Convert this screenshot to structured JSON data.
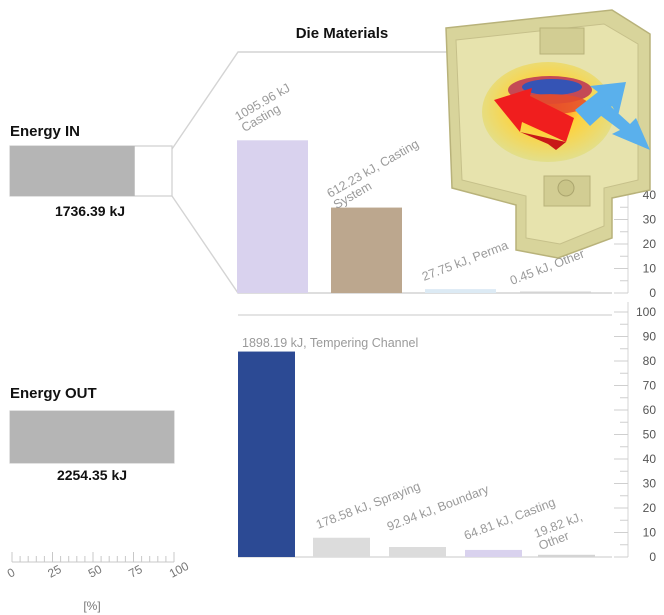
{
  "chart_data": {
    "type": "bar",
    "title": "Die Materials",
    "unit_label": "[%]",
    "colors": {
      "casting": "#d9d2ee",
      "casting_system": "#bca78e",
      "permanent": "#dceaf4",
      "other": "#d4d4d4",
      "tempering": "#2c4a94",
      "spraying": "#dcdcdc",
      "boundary": "#dcdcdc",
      "energy_bar": "#b5b5b5"
    },
    "energy_in": {
      "label": "Energy IN",
      "total_label": "1736.39 kJ",
      "bar_percent": 77
    },
    "energy_out": {
      "label": "Energy OUT",
      "total_label": "2254.35 kJ",
      "bar_percent": 100
    },
    "scale_ticks": [
      "0",
      "25",
      "50",
      "75",
      "100"
    ],
    "in_chart": {
      "ylim": [
        0,
        100
      ],
      "y_ticks": [
        "0",
        "10",
        "20",
        "30",
        "40"
      ],
      "series": [
        {
          "key": "casting",
          "label": "1095.96 kJ\nCasting",
          "value": 63.1
        },
        {
          "key": "casting_system",
          "label": "612.23 kJ, Casting\nSystem",
          "value": 35.3
        },
        {
          "key": "permanent",
          "label": "27.75 kJ, Perma",
          "value": 1.6
        },
        {
          "key": "other",
          "label": "0.45 kJ, Other",
          "value": 0.03
        }
      ]
    },
    "out_chart": {
      "ylim": [
        0,
        100
      ],
      "y_ticks": [
        "0",
        "10",
        "20",
        "30",
        "40",
        "50",
        "60",
        "70",
        "80",
        "90",
        "100"
      ],
      "series": [
        {
          "key": "tempering",
          "label": "1898.19 kJ, Tempering Channel",
          "value": 84.2
        },
        {
          "key": "spraying",
          "label": "178.58 kJ, Spraying",
          "value": 7.9
        },
        {
          "key": "boundary",
          "label": "92.94 kJ, Boundary",
          "value": 4.1
        },
        {
          "key": "casting",
          "label": "64.81 kJ, Casting",
          "value": 2.9
        },
        {
          "key": "other",
          "label": "19.82 kJ,\nOther",
          "value": 0.9
        }
      ]
    }
  }
}
